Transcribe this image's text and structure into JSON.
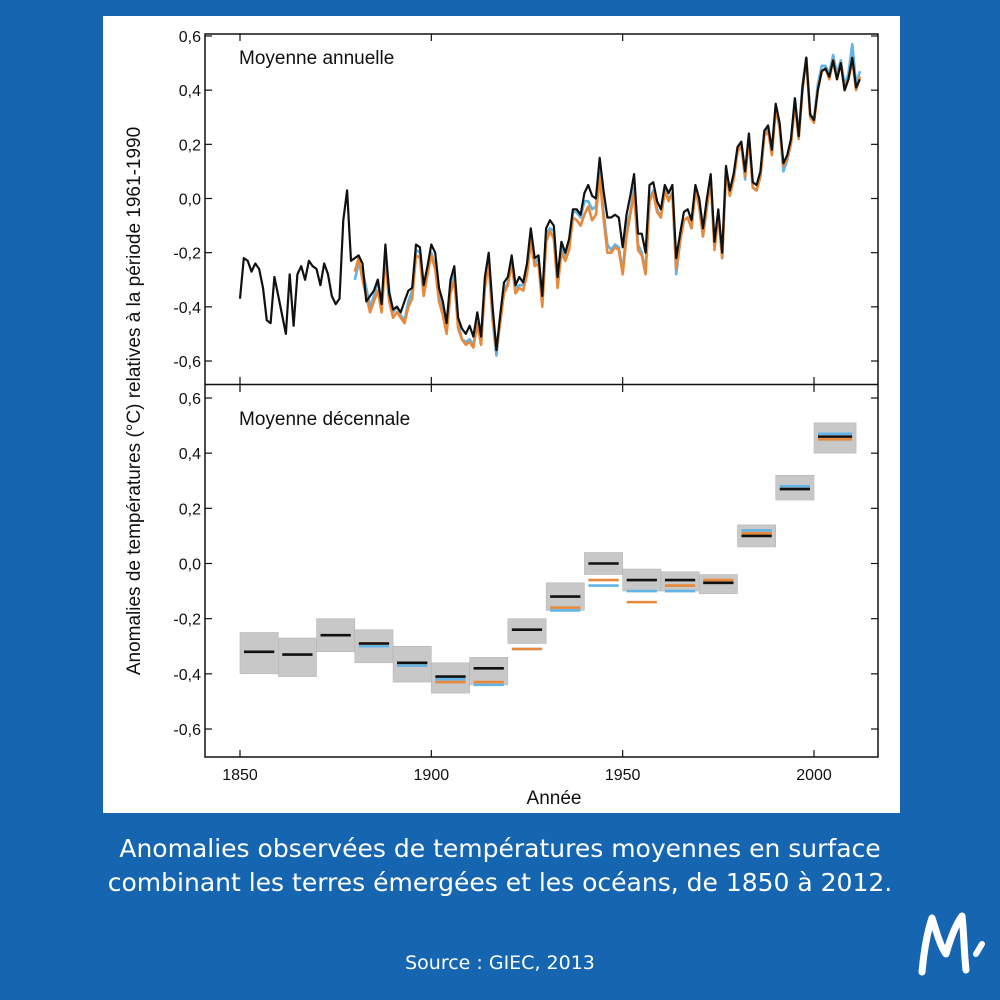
{
  "caption": {
    "line1": "Anomalies observées de températures moyennes en surface",
    "line2": "combinant les terres émergées et les océans, de 1850 à 2012.",
    "source": "Source : GIEC, 2013"
  },
  "colors": {
    "background": "#1565b0",
    "series_black": "#111111",
    "series_orange": "#e8893a",
    "series_blue": "#62b3e6",
    "uncertainty": "#c8c8c8"
  },
  "chart_data": [
    {
      "type": "line",
      "title": "Moyenne annuelle",
      "xlabel": "Année",
      "ylabel": "Anomalies de températures (°C) relatives à la période 1961-1990",
      "xlim": [
        1845,
        2017
      ],
      "ylim": [
        -0.7,
        0.65
      ],
      "xticks": [
        1850,
        1900,
        1950,
        2000
      ],
      "ytick_labels": [
        "0,6",
        "0,4",
        "0,2",
        "0,0",
        "-0,2",
        "-0,4",
        "-0,6"
      ],
      "yticks": [
        0.6,
        0.4,
        0.2,
        0.0,
        -0.2,
        -0.4,
        -0.6
      ],
      "series": [
        {
          "color": "#111111",
          "x": [
            1850,
            1851,
            1852,
            1853,
            1854,
            1855,
            1856,
            1857,
            1858,
            1859,
            1860,
            1861,
            1862,
            1863,
            1864,
            1865,
            1866,
            1867,
            1868,
            1869,
            1870,
            1871,
            1872,
            1873,
            1874,
            1875,
            1876,
            1877,
            1878,
            1879,
            1880,
            1881,
            1882,
            1883,
            1884,
            1885,
            1886,
            1887,
            1888,
            1889,
            1890,
            1891,
            1892,
            1893,
            1894,
            1895,
            1896,
            1897,
            1898,
            1899,
            1900,
            1901,
            1902,
            1903,
            1904,
            1905,
            1906,
            1907,
            1908,
            1909,
            1910,
            1911,
            1912,
            1913,
            1914,
            1915,
            1916,
            1917,
            1918,
            1919,
            1920,
            1921,
            1922,
            1923,
            1924,
            1925,
            1926,
            1927,
            1928,
            1929,
            1930,
            1931,
            1932,
            1933,
            1934,
            1935,
            1936,
            1937,
            1938,
            1939,
            1940,
            1941,
            1942,
            1943,
            1944,
            1945,
            1946,
            1947,
            1948,
            1949,
            1950,
            1951,
            1952,
            1953,
            1954,
            1955,
            1956,
            1957,
            1958,
            1959,
            1960,
            1961,
            1962,
            1963,
            1964,
            1965,
            1966,
            1967,
            1968,
            1969,
            1970,
            1971,
            1972,
            1973,
            1974,
            1975,
            1976,
            1977,
            1978,
            1979,
            1980,
            1981,
            1982,
            1983,
            1984,
            1985,
            1986,
            1987,
            1988,
            1989,
            1990,
            1991,
            1992,
            1993,
            1994,
            1995,
            1996,
            1997,
            1998,
            1999,
            2000,
            2001,
            2002,
            2003,
            2004,
            2005,
            2006,
            2007,
            2008,
            2009,
            2010,
            2011,
            2012
          ],
          "values": [
            -0.37,
            -0.22,
            -0.23,
            -0.27,
            -0.24,
            -0.26,
            -0.33,
            -0.45,
            -0.46,
            -0.29,
            -0.36,
            -0.43,
            -0.5,
            -0.28,
            -0.47,
            -0.28,
            -0.25,
            -0.3,
            -0.23,
            -0.25,
            -0.26,
            -0.32,
            -0.24,
            -0.28,
            -0.36,
            -0.39,
            -0.37,
            -0.08,
            0.03,
            -0.23,
            -0.22,
            -0.21,
            -0.24,
            -0.38,
            -0.36,
            -0.34,
            -0.3,
            -0.39,
            -0.17,
            -0.35,
            -0.41,
            -0.4,
            -0.42,
            -0.38,
            -0.34,
            -0.33,
            -0.17,
            -0.18,
            -0.32,
            -0.25,
            -0.17,
            -0.2,
            -0.33,
            -0.38,
            -0.46,
            -0.3,
            -0.25,
            -0.44,
            -0.48,
            -0.5,
            -0.47,
            -0.51,
            -0.42,
            -0.51,
            -0.29,
            -0.2,
            -0.4,
            -0.56,
            -0.43,
            -0.31,
            -0.29,
            -0.21,
            -0.32,
            -0.29,
            -0.31,
            -0.24,
            -0.11,
            -0.22,
            -0.21,
            -0.36,
            -0.11,
            -0.08,
            -0.1,
            -0.29,
            -0.16,
            -0.2,
            -0.15,
            -0.04,
            -0.04,
            -0.06,
            0.02,
            0.05,
            0.01,
            0.0,
            0.15,
            0.03,
            -0.07,
            -0.07,
            -0.06,
            -0.07,
            -0.18,
            -0.06,
            0.01,
            0.09,
            -0.13,
            -0.13,
            -0.2,
            0.05,
            0.06,
            -0.01,
            -0.04,
            0.05,
            0.02,
            0.05,
            -0.22,
            -0.13,
            -0.05,
            -0.04,
            -0.08,
            0.05,
            0.0,
            -0.11,
            0.0,
            0.09,
            -0.16,
            -0.04,
            -0.2,
            0.12,
            0.03,
            0.09,
            0.19,
            0.21,
            0.1,
            0.24,
            0.06,
            0.05,
            0.1,
            0.25,
            0.27,
            0.18,
            0.35,
            0.28,
            0.13,
            0.16,
            0.22,
            0.37,
            0.23,
            0.41,
            0.52,
            0.31,
            0.29,
            0.4,
            0.47,
            0.48,
            0.45,
            0.51,
            0.44,
            0.5,
            0.4,
            0.44,
            0.52,
            0.41,
            0.44
          ]
        },
        {
          "color": "#e8893a",
          "x": [
            1880,
            1881,
            1882,
            1883,
            1884,
            1885,
            1886,
            1887,
            1888,
            1889,
            1890,
            1891,
            1892,
            1893,
            1894,
            1895,
            1896,
            1897,
            1898,
            1899,
            1900,
            1901,
            1902,
            1903,
            1904,
            1905,
            1906,
            1907,
            1908,
            1909,
            1910,
            1911,
            1912,
            1913,
            1914,
            1915,
            1916,
            1917,
            1918,
            1919,
            1920,
            1921,
            1922,
            1923,
            1924,
            1925,
            1926,
            1927,
            1928,
            1929,
            1930,
            1931,
            1932,
            1933,
            1934,
            1935,
            1936,
            1937,
            1938,
            1939,
            1940,
            1941,
            1942,
            1943,
            1944,
            1945,
            1946,
            1947,
            1948,
            1949,
            1950,
            1951,
            1952,
            1953,
            1954,
            1955,
            1956,
            1957,
            1958,
            1959,
            1960,
            1961,
            1962,
            1963,
            1964,
            1965,
            1966,
            1967,
            1968,
            1969,
            1970,
            1971,
            1972,
            1973,
            1974,
            1975,
            1976,
            1977,
            1978,
            1979,
            1980,
            1981,
            1982,
            1983,
            1984,
            1985,
            1986,
            1987,
            1988,
            1989,
            1990,
            1991,
            1992,
            1993,
            1994,
            1995,
            1996,
            1997,
            1998,
            1999,
            2000,
            2001,
            2002,
            2003,
            2004,
            2005,
            2006,
            2007,
            2008,
            2009,
            2010,
            2011,
            2012
          ],
          "values": [
            -0.27,
            -0.22,
            -0.3,
            -0.36,
            -0.42,
            -0.38,
            -0.34,
            -0.42,
            -0.22,
            -0.38,
            -0.44,
            -0.42,
            -0.44,
            -0.46,
            -0.4,
            -0.37,
            -0.21,
            -0.22,
            -0.36,
            -0.28,
            -0.21,
            -0.26,
            -0.38,
            -0.43,
            -0.5,
            -0.35,
            -0.3,
            -0.48,
            -0.52,
            -0.54,
            -0.53,
            -0.55,
            -0.46,
            -0.54,
            -0.33,
            -0.24,
            -0.44,
            -0.56,
            -0.46,
            -0.35,
            -0.32,
            -0.24,
            -0.35,
            -0.33,
            -0.34,
            -0.28,
            -0.16,
            -0.25,
            -0.24,
            -0.4,
            -0.16,
            -0.12,
            -0.15,
            -0.33,
            -0.2,
            -0.23,
            -0.19,
            -0.07,
            -0.08,
            -0.1,
            -0.06,
            -0.03,
            -0.08,
            -0.06,
            0.08,
            -0.07,
            -0.2,
            -0.2,
            -0.18,
            -0.19,
            -0.28,
            -0.14,
            -0.06,
            0.02,
            -0.19,
            -0.21,
            -0.28,
            -0.01,
            0.02,
            -0.05,
            -0.07,
            0.03,
            -0.01,
            0.02,
            -0.26,
            -0.16,
            -0.08,
            -0.07,
            -0.11,
            0.03,
            -0.03,
            -0.14,
            -0.03,
            0.07,
            -0.19,
            -0.06,
            -0.22,
            0.1,
            0.01,
            0.07,
            0.17,
            0.2,
            0.08,
            0.22,
            0.04,
            0.03,
            0.08,
            0.23,
            0.25,
            0.16,
            0.33,
            0.26,
            0.12,
            0.15,
            0.2,
            0.35,
            0.22,
            0.4,
            0.52,
            0.3,
            0.28,
            0.4,
            0.47,
            0.48,
            0.44,
            0.51,
            0.44,
            0.5,
            0.4,
            0.44,
            0.51,
            0.4,
            0.45
          ]
        },
        {
          "color": "#62b3e6",
          "x": [
            1880,
            1881,
            1882,
            1883,
            1884,
            1885,
            1886,
            1887,
            1888,
            1889,
            1890,
            1891,
            1892,
            1893,
            1894,
            1895,
            1896,
            1897,
            1898,
            1899,
            1900,
            1901,
            1902,
            1903,
            1904,
            1905,
            1906,
            1907,
            1908,
            1909,
            1910,
            1911,
            1912,
            1913,
            1914,
            1915,
            1916,
            1917,
            1918,
            1919,
            1920,
            1921,
            1922,
            1923,
            1924,
            1925,
            1926,
            1927,
            1928,
            1929,
            1930,
            1931,
            1932,
            1933,
            1934,
            1935,
            1936,
            1937,
            1938,
            1939,
            1940,
            1941,
            1942,
            1943,
            1944,
            1945,
            1946,
            1947,
            1948,
            1949,
            1950,
            1951,
            1952,
            1953,
            1954,
            1955,
            1956,
            1957,
            1958,
            1959,
            1960,
            1961,
            1962,
            1963,
            1964,
            1965,
            1966,
            1967,
            1968,
            1969,
            1970,
            1971,
            1972,
            1973,
            1974,
            1975,
            1976,
            1977,
            1978,
            1979,
            1980,
            1981,
            1982,
            1983,
            1984,
            1985,
            1986,
            1987,
            1988,
            1989,
            1990,
            1991,
            1992,
            1993,
            1994,
            1995,
            1996,
            1997,
            1998,
            1999,
            2000,
            2001,
            2002,
            2003,
            2004,
            2005,
            2006,
            2007,
            2008,
            2009,
            2010,
            2011,
            2012
          ],
          "values": [
            -0.3,
            -0.24,
            -0.27,
            -0.33,
            -0.4,
            -0.36,
            -0.3,
            -0.4,
            -0.21,
            -0.34,
            -0.42,
            -0.4,
            -0.43,
            -0.45,
            -0.38,
            -0.34,
            -0.19,
            -0.2,
            -0.34,
            -0.26,
            -0.2,
            -0.25,
            -0.36,
            -0.42,
            -0.49,
            -0.33,
            -0.28,
            -0.46,
            -0.52,
            -0.53,
            -0.52,
            -0.54,
            -0.47,
            -0.53,
            -0.31,
            -0.24,
            -0.45,
            -0.58,
            -0.45,
            -0.34,
            -0.31,
            -0.23,
            -0.33,
            -0.32,
            -0.32,
            -0.26,
            -0.14,
            -0.24,
            -0.22,
            -0.38,
            -0.13,
            -0.11,
            -0.12,
            -0.31,
            -0.18,
            -0.21,
            -0.17,
            -0.05,
            -0.05,
            -0.07,
            -0.01,
            -0.01,
            -0.04,
            -0.03,
            0.1,
            -0.05,
            -0.17,
            -0.19,
            -0.17,
            -0.18,
            -0.27,
            -0.11,
            -0.05,
            0.04,
            -0.17,
            -0.2,
            -0.27,
            0.0,
            0.03,
            -0.04,
            -0.07,
            0.03,
            0.0,
            0.02,
            -0.28,
            -0.16,
            -0.08,
            -0.07,
            -0.11,
            0.04,
            -0.03,
            -0.14,
            -0.03,
            0.07,
            -0.18,
            -0.06,
            -0.22,
            0.11,
            0.02,
            0.07,
            0.18,
            0.2,
            0.07,
            0.23,
            0.04,
            0.03,
            0.08,
            0.24,
            0.26,
            0.18,
            0.34,
            0.27,
            0.1,
            0.14,
            0.21,
            0.37,
            0.23,
            0.42,
            0.52,
            0.31,
            0.29,
            0.42,
            0.49,
            0.49,
            0.46,
            0.53,
            0.46,
            0.51,
            0.42,
            0.46,
            0.57,
            0.42,
            0.47
          ]
        }
      ]
    },
    {
      "type": "bar",
      "title": "Moyenne décennale",
      "xlabel": "Année",
      "ylabel": "Anomalies de températures (°C) relatives à la période 1961-1990",
      "xlim": [
        1845,
        2017
      ],
      "ylim": [
        -0.7,
        0.65
      ],
      "xticks": [
        1850,
        1900,
        1950,
        2000
      ],
      "xtick_labels": [
        "1850",
        "1900",
        "1950",
        "2000"
      ],
      "ytick_labels": [
        "0,6",
        "0,4",
        "0,2",
        "0,0",
        "-0,2",
        "-0,4",
        "-0,6"
      ],
      "yticks": [
        0.6,
        0.4,
        0.2,
        0.0,
        -0.2,
        -0.4,
        -0.6
      ],
      "decade_start": [
        1850,
        1860,
        1870,
        1880,
        1890,
        1900,
        1910,
        1920,
        1930,
        1940,
        1950,
        1960,
        1970,
        1980,
        1990,
        2000
      ],
      "decade_end": [
        1860,
        1870,
        1880,
        1890,
        1900,
        1910,
        1920,
        1930,
        1940,
        1950,
        1960,
        1970,
        1980,
        1990,
        2000,
        2011
      ],
      "band_low": [
        -0.4,
        -0.41,
        -0.32,
        -0.36,
        -0.43,
        -0.47,
        -0.44,
        -0.29,
        -0.17,
        -0.04,
        -0.1,
        -0.1,
        -0.11,
        0.06,
        0.23,
        0.4
      ],
      "band_high": [
        -0.25,
        -0.27,
        -0.2,
        -0.24,
        -0.3,
        -0.36,
        -0.34,
        -0.2,
        -0.07,
        0.04,
        -0.02,
        -0.03,
        -0.04,
        0.14,
        0.32,
        0.51
      ],
      "series": [
        {
          "color": "#111111",
          "values": [
            -0.32,
            -0.33,
            -0.26,
            -0.29,
            -0.36,
            -0.41,
            -0.38,
            -0.24,
            -0.12,
            0.0,
            -0.06,
            -0.06,
            -0.07,
            0.1,
            0.27,
            0.46
          ]
        },
        {
          "color": "#e8893a",
          "values": [
            null,
            null,
            null,
            -0.29,
            -0.36,
            -0.43,
            -0.43,
            -0.31,
            -0.16,
            -0.06,
            -0.14,
            -0.08,
            -0.06,
            0.11,
            0.27,
            0.45
          ]
        },
        {
          "color": "#62b3e6",
          "values": [
            null,
            null,
            null,
            -0.3,
            -0.37,
            -0.42,
            -0.44,
            -0.31,
            -0.17,
            -0.08,
            -0.1,
            -0.1,
            -0.07,
            0.12,
            0.28,
            0.47
          ]
        }
      ]
    }
  ]
}
